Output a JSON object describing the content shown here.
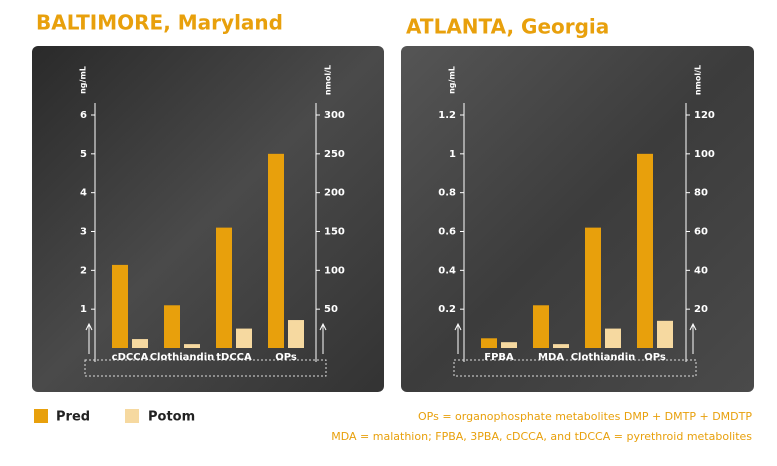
{
  "chart_data": [
    {
      "type": "bar",
      "title": "BALTIMORE, Maryland",
      "y_label": "ng/mL",
      "y2_label": "nmol/L",
      "categories": [
        "cDCCA",
        "Clothiandin",
        "tDCCA",
        "OPs"
      ],
      "series": [
        {
          "name": "Pred",
          "color": "#e8a00c",
          "values": [
            2.14,
            1.1,
            3.1,
            5.0
          ]
        },
        {
          "name": "Potom",
          "color": "#f6d9a0",
          "values": [
            0.23,
            0.1,
            0.5,
            0.72
          ]
        }
      ],
      "ylim": [
        0,
        6
      ],
      "yticks": [
        1,
        2,
        3,
        4,
        5,
        6
      ],
      "y2lim": [
        0,
        300
      ],
      "y2ticks": [
        50,
        100,
        150,
        200,
        250,
        300
      ]
    },
    {
      "type": "bar",
      "title": "ATLANTA, Georgia",
      "y_label": "ng/mL",
      "y2_label": "nmol/L",
      "categories": [
        "FPBA",
        "MDA",
        "Clothiandin",
        "OPs"
      ],
      "series": [
        {
          "name": "Pred",
          "color": "#e8a00c",
          "values": [
            0.05,
            0.22,
            0.62,
            1.0
          ]
        },
        {
          "name": "Potom",
          "color": "#f6d9a0",
          "values": [
            0.03,
            0.02,
            0.1,
            0.14
          ]
        }
      ],
      "ylim": [
        0,
        1.2
      ],
      "yticks": [
        0.2,
        0.4,
        0.6,
        0.8,
        1.0,
        1.2
      ],
      "y2lim": [
        0,
        120
      ],
      "y2ticks": [
        20,
        40,
        60,
        80,
        100,
        120
      ]
    }
  ],
  "notes": [
    "OPs = organophosphate metabolites DMP + DMTP + DMDTP",
    "MDA = malathion; FPBA, 3PBA, cDCCA, and tDCCA = pyrethroid metabolites"
  ]
}
